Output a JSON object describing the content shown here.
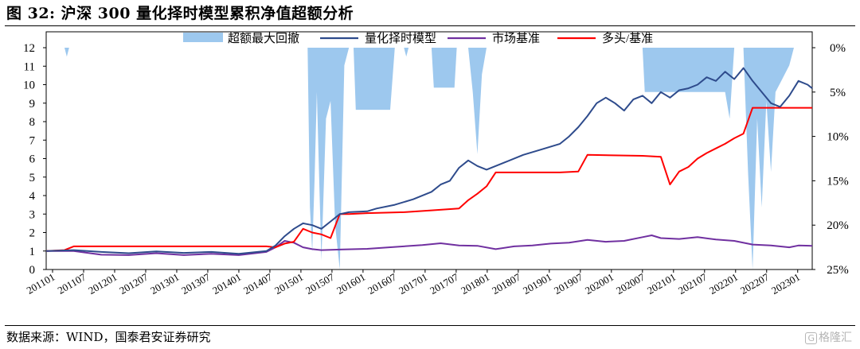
{
  "header": {
    "title": "图 32:  沪深 300 量化择时模型累积净值超额分析"
  },
  "footer": {
    "source": "数据来源：WIND，国泰君安证券研究",
    "watermark_text": "格隆汇",
    "watermark_icon": "gelonghui-logo-icon"
  },
  "chart_data": {
    "type": "line",
    "title": "",
    "x_tick_labels": [
      "201101",
      "201107",
      "201201",
      "201207",
      "201301",
      "201307",
      "201401",
      "201407",
      "201501",
      "201507",
      "201601",
      "201607",
      "201701",
      "201707",
      "201801",
      "201807",
      "201901",
      "201907",
      "202001",
      "202007",
      "202101",
      "202107",
      "202201",
      "202207",
      "202301"
    ],
    "left_axis": {
      "ticks": [
        0,
        1,
        2,
        3,
        4,
        5,
        6,
        7,
        8,
        9,
        10,
        11,
        12
      ],
      "ylim": [
        0,
        12
      ]
    },
    "right_axis": {
      "ticks": [
        "0%",
        "5%",
        "10%",
        "15%",
        "20%",
        "25%"
      ],
      "ylim_percent": [
        0,
        25
      ],
      "inverted": true
    },
    "legend": {
      "placement": "top-center",
      "items": [
        {
          "label": "超额最大回撤",
          "kind": "area",
          "color": "#9DC8EE"
        },
        {
          "label": "量化择时模型",
          "kind": "line",
          "color": "#2E4B8C"
        },
        {
          "label": "市场基准",
          "kind": "line",
          "color": "#7030A0"
        },
        {
          "label": "多头/基准",
          "kind": "line",
          "color": "#FF0000"
        }
      ]
    },
    "series": [
      {
        "name": "量化择时模型",
        "color": "#2E4B8C",
        "axis": "left",
        "points": [
          [
            0,
            1.0
          ],
          [
            6,
            1.05
          ],
          [
            12,
            0.95
          ],
          [
            18,
            0.88
          ],
          [
            24,
            0.98
          ],
          [
            30,
            0.9
          ],
          [
            36,
            0.95
          ],
          [
            42,
            0.85
          ],
          [
            48,
            1.0
          ],
          [
            50,
            1.3
          ],
          [
            52,
            1.8
          ],
          [
            54,
            2.2
          ],
          [
            56,
            2.5
          ],
          [
            58,
            2.4
          ],
          [
            60,
            2.2
          ],
          [
            62,
            2.6
          ],
          [
            64,
            3.0
          ],
          [
            66,
            3.1
          ],
          [
            70,
            3.15
          ],
          [
            72,
            3.3
          ],
          [
            76,
            3.5
          ],
          [
            80,
            3.8
          ],
          [
            84,
            4.2
          ],
          [
            86,
            4.6
          ],
          [
            88,
            4.8
          ],
          [
            90,
            5.5
          ],
          [
            92,
            5.9
          ],
          [
            94,
            5.6
          ],
          [
            96,
            5.4
          ],
          [
            98,
            5.6
          ],
          [
            100,
            5.8
          ],
          [
            104,
            6.2
          ],
          [
            108,
            6.5
          ],
          [
            112,
            6.8
          ],
          [
            114,
            7.2
          ],
          [
            116,
            7.7
          ],
          [
            118,
            8.3
          ],
          [
            120,
            9.0
          ],
          [
            122,
            9.3
          ],
          [
            124,
            9.0
          ],
          [
            126,
            8.6
          ],
          [
            128,
            9.2
          ],
          [
            130,
            9.4
          ],
          [
            132,
            9.0
          ],
          [
            134,
            9.6
          ],
          [
            136,
            9.3
          ],
          [
            138,
            9.7
          ],
          [
            140,
            9.8
          ],
          [
            142,
            10.0
          ],
          [
            144,
            10.4
          ],
          [
            146,
            10.2
          ],
          [
            148,
            10.7
          ],
          [
            150,
            10.3
          ],
          [
            152,
            10.9
          ],
          [
            154,
            10.2
          ],
          [
            156,
            9.6
          ],
          [
            158,
            9.0
          ],
          [
            160,
            8.8
          ],
          [
            162,
            9.4
          ],
          [
            164,
            10.2
          ],
          [
            166,
            10.0
          ],
          [
            167,
            9.8
          ]
        ]
      },
      {
        "name": "市场基准",
        "color": "#7030A0",
        "axis": "left",
        "points": [
          [
            0,
            1.0
          ],
          [
            6,
            1.0
          ],
          [
            12,
            0.8
          ],
          [
            18,
            0.78
          ],
          [
            24,
            0.88
          ],
          [
            30,
            0.78
          ],
          [
            36,
            0.85
          ],
          [
            42,
            0.78
          ],
          [
            48,
            0.95
          ],
          [
            50,
            1.2
          ],
          [
            52,
            1.55
          ],
          [
            54,
            1.45
          ],
          [
            56,
            1.2
          ],
          [
            58,
            1.1
          ],
          [
            60,
            1.05
          ],
          [
            64,
            1.08
          ],
          [
            70,
            1.12
          ],
          [
            76,
            1.22
          ],
          [
            82,
            1.32
          ],
          [
            86,
            1.42
          ],
          [
            90,
            1.3
          ],
          [
            94,
            1.28
          ],
          [
            98,
            1.1
          ],
          [
            102,
            1.25
          ],
          [
            106,
            1.3
          ],
          [
            110,
            1.4
          ],
          [
            114,
            1.45
          ],
          [
            118,
            1.6
          ],
          [
            122,
            1.5
          ],
          [
            126,
            1.55
          ],
          [
            130,
            1.75
          ],
          [
            132,
            1.85
          ],
          [
            134,
            1.7
          ],
          [
            138,
            1.65
          ],
          [
            142,
            1.75
          ],
          [
            146,
            1.62
          ],
          [
            150,
            1.55
          ],
          [
            154,
            1.35
          ],
          [
            158,
            1.3
          ],
          [
            162,
            1.2
          ],
          [
            164,
            1.3
          ],
          [
            167,
            1.28
          ]
        ]
      },
      {
        "name": "多头/基准",
        "color": "#FF0000",
        "axis": "left",
        "points": [
          [
            0,
            1.0
          ],
          [
            4,
            1.05
          ],
          [
            6,
            1.25
          ],
          [
            48,
            1.25
          ],
          [
            50,
            1.2
          ],
          [
            52,
            1.4
          ],
          [
            54,
            1.5
          ],
          [
            56,
            2.2
          ],
          [
            58,
            2.0
          ],
          [
            60,
            1.9
          ],
          [
            62,
            1.7
          ],
          [
            64,
            3.0
          ],
          [
            66,
            3.0
          ],
          [
            70,
            3.05
          ],
          [
            78,
            3.1
          ],
          [
            84,
            3.2
          ],
          [
            90,
            3.3
          ],
          [
            92,
            3.75
          ],
          [
            94,
            4.1
          ],
          [
            96,
            4.5
          ],
          [
            98,
            5.25
          ],
          [
            112,
            5.25
          ],
          [
            116,
            5.3
          ],
          [
            118,
            6.2
          ],
          [
            130,
            6.15
          ],
          [
            134,
            6.1
          ],
          [
            136,
            4.6
          ],
          [
            138,
            5.3
          ],
          [
            140,
            5.55
          ],
          [
            142,
            6.0
          ],
          [
            144,
            6.3
          ],
          [
            146,
            6.55
          ],
          [
            148,
            6.8
          ],
          [
            150,
            7.1
          ],
          [
            152,
            7.35
          ],
          [
            154,
            8.75
          ],
          [
            167,
            8.75
          ]
        ]
      },
      {
        "name": "超额最大回撤",
        "color": "#9DC8EE",
        "axis": "right",
        "kind": "area",
        "drawdown_percent": [
          [
            0,
            0
          ],
          [
            4,
            0
          ],
          [
            4.5,
            1
          ],
          [
            5,
            0
          ],
          [
            57,
            0
          ],
          [
            57.5,
            18
          ],
          [
            58,
            23
          ],
          [
            58.5,
            15
          ],
          [
            59,
            5
          ],
          [
            60,
            24
          ],
          [
            61,
            8
          ],
          [
            62,
            6
          ],
          [
            63,
            20
          ],
          [
            64,
            25
          ],
          [
            65,
            2
          ],
          [
            66,
            0
          ],
          [
            67,
            0
          ],
          [
            67.5,
            7
          ],
          [
            75,
            7
          ],
          [
            76,
            0
          ],
          [
            78,
            0
          ],
          [
            78.5,
            1
          ],
          [
            79,
            0
          ],
          [
            84,
            0
          ],
          [
            84.5,
            4.5
          ],
          [
            89,
            4.5
          ],
          [
            89.5,
            0
          ],
          [
            92,
            0
          ],
          [
            93,
            5
          ],
          [
            94,
            12
          ],
          [
            95,
            3
          ],
          [
            96,
            0
          ],
          [
            98,
            0
          ],
          [
            100,
            0
          ],
          [
            130,
            0
          ],
          [
            130.5,
            5
          ],
          [
            148,
            5
          ],
          [
            149,
            8
          ],
          [
            150,
            0
          ],
          [
            152,
            0
          ],
          [
            153,
            14
          ],
          [
            154,
            25
          ],
          [
            155,
            8
          ],
          [
            156,
            18
          ],
          [
            157,
            6
          ],
          [
            158,
            14
          ],
          [
            159,
            5
          ],
          [
            160,
            4
          ],
          [
            161,
            3
          ],
          [
            162,
            2
          ],
          [
            163,
            0
          ],
          [
            167,
            0
          ]
        ]
      }
    ],
    "grid": false
  }
}
